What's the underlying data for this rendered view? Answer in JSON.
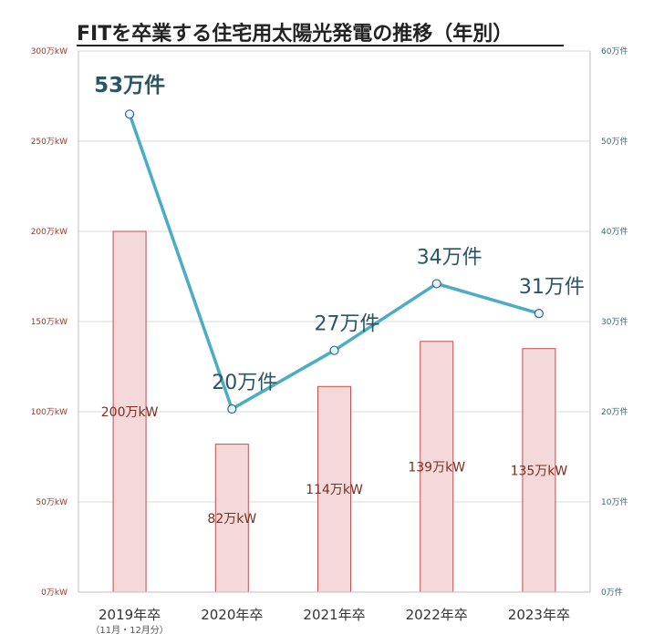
{
  "chart_data": {
    "type": "bar",
    "title": "FITを卒業する住宅用太陽光発電の推移（年別）",
    "categories": [
      "2019年卒",
      "2020年卒",
      "2021年卒",
      "2022年卒",
      "2023年卒"
    ],
    "category_note": "（11月・12月分）",
    "series": [
      {
        "type": "bar",
        "axis": "left",
        "values": [
          200,
          82,
          114,
          139,
          135
        ],
        "labels": [
          "200万kW",
          "82万kW",
          "114万kW",
          "139万kW",
          "135万kW"
        ],
        "color": "#f3d9da",
        "edge_color": "#c0504d"
      },
      {
        "type": "line",
        "axis": "right",
        "values": [
          53,
          20.3,
          26.8,
          34.2,
          30.9
        ],
        "labels": [
          "53万件",
          "20万件",
          "27万件",
          "34万件",
          "31万件"
        ],
        "color": "#4bacc6"
      }
    ],
    "y_left": {
      "range": [
        0,
        300
      ],
      "ticks": [
        "0万kW",
        "50万kW",
        "100万kW",
        "150万kW",
        "200万kW",
        "250万kW",
        "300万kW"
      ]
    },
    "y_right": {
      "range": [
        0,
        60
      ],
      "ticks": [
        "0万件",
        "10万件",
        "20万件",
        "30万件",
        "40万件",
        "50万件",
        "60万件"
      ]
    },
    "grid": true,
    "legend": "none"
  }
}
